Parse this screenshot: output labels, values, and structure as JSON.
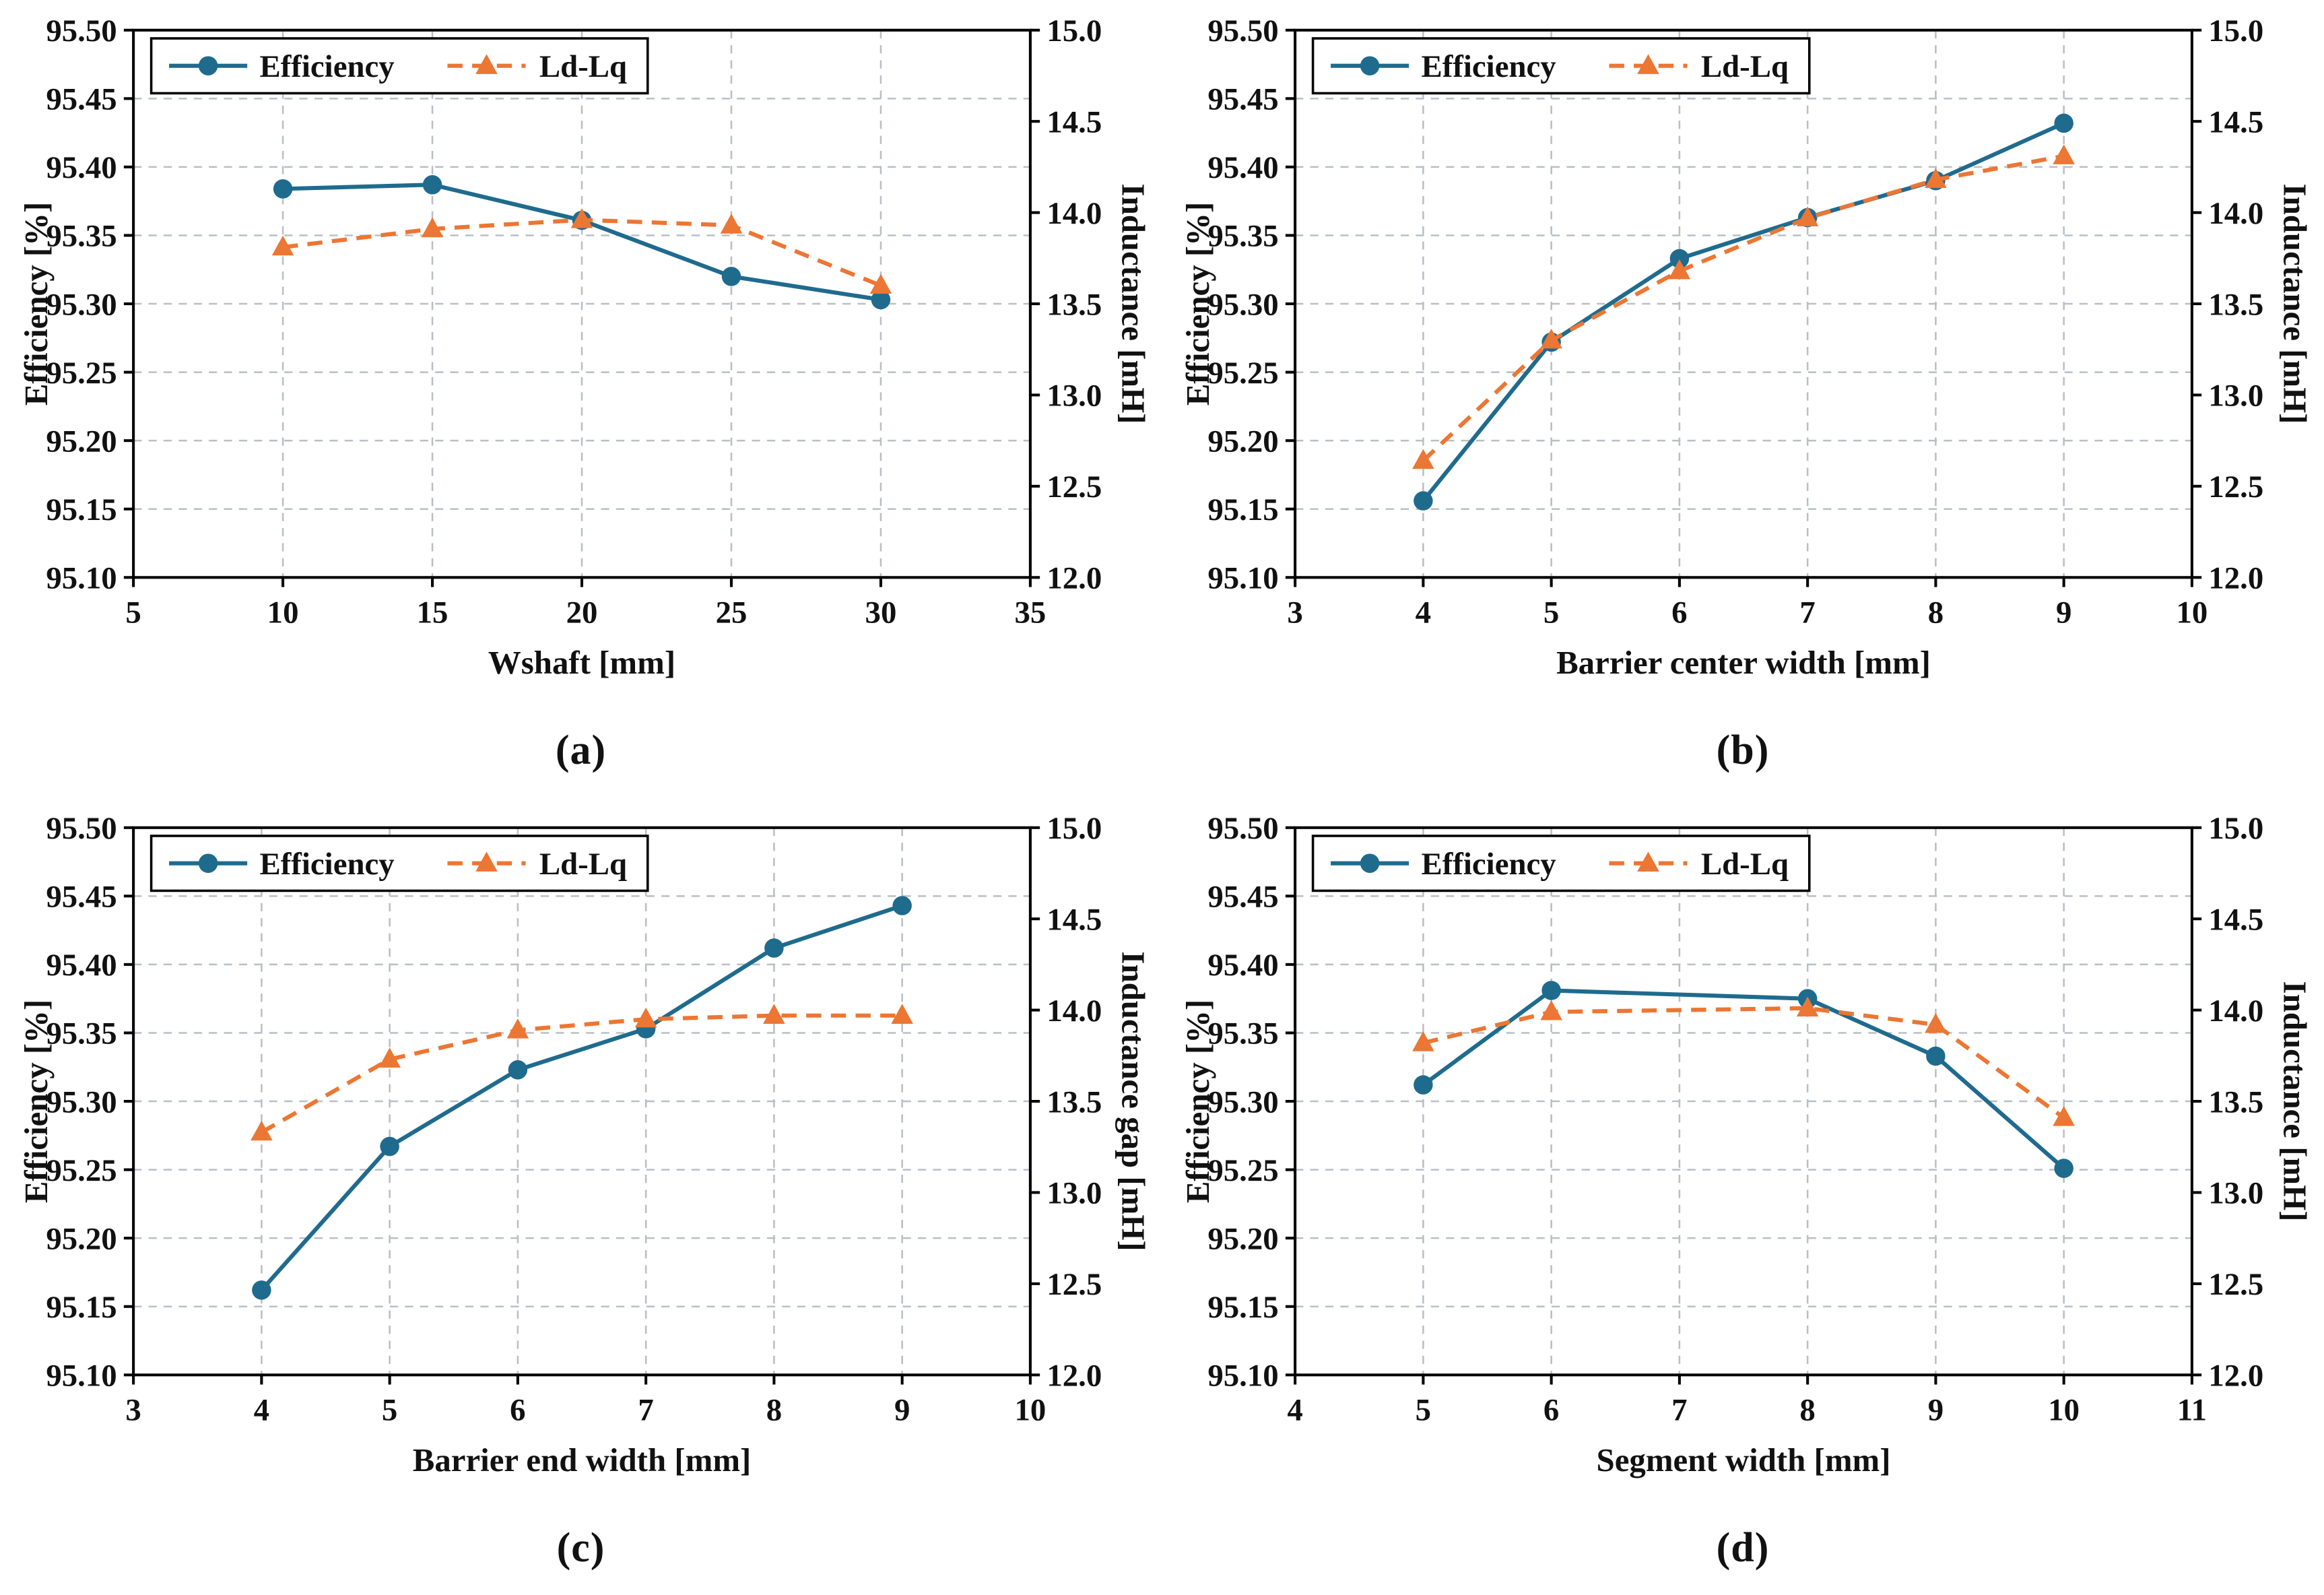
{
  "colors": {
    "efficiency": "#1f6b8e",
    "ldlq": "#ec7633",
    "grid": "#b9bfc6",
    "axis": "#000000"
  },
  "chart_data": [
    {
      "id": "a",
      "type": "line",
      "caption": "(a)",
      "xlabel": "Wshaft [mm]",
      "ylabel_left": "Efficiency [%]",
      "ylabel_right": "Inductance  [mH]",
      "xlim": [
        5,
        35
      ],
      "xticks": [
        "5",
        "10",
        "15",
        "20",
        "25",
        "30",
        "35"
      ],
      "ylim_left": [
        95.1,
        95.5
      ],
      "yticks_left": [
        "95.10",
        "95.15",
        "95.20",
        "95.25",
        "95.30",
        "95.35",
        "95.40",
        "95.45",
        "95.50"
      ],
      "ylim_right": [
        12.0,
        15.0
      ],
      "yticks_right": [
        "12.0",
        "12.5",
        "13.0",
        "13.5",
        "14.0",
        "14.5",
        "15.0"
      ],
      "legend": [
        {
          "label": "Efficiency"
        },
        {
          "label": "Ld-Lq"
        }
      ],
      "series": [
        {
          "name": "Efficiency",
          "axis": "left",
          "color": "#1f6b8e",
          "marker": "circle",
          "line": "solid",
          "x": [
            10,
            15,
            20,
            25,
            30
          ],
          "y": [
            95.384,
            95.387,
            95.361,
            95.32,
            95.303
          ]
        },
        {
          "name": "Ld-Lq",
          "axis": "right",
          "color": "#ec7633",
          "marker": "triangle",
          "line": "dashed",
          "x": [
            10,
            15,
            20,
            25,
            30
          ],
          "y": [
            13.81,
            13.91,
            13.96,
            13.93,
            13.6
          ]
        }
      ]
    },
    {
      "id": "b",
      "type": "line",
      "caption": "(b)",
      "xlabel": "Barrier center width [mm]",
      "ylabel_left": "Efficiency [%]",
      "ylabel_right": "Inductance  [mH]",
      "xlim": [
        3,
        10
      ],
      "xticks": [
        "3",
        "4",
        "5",
        "6",
        "7",
        "8",
        "9",
        "10"
      ],
      "ylim_left": [
        95.1,
        95.5
      ],
      "yticks_left": [
        "95.10",
        "95.15",
        "95.20",
        "95.25",
        "95.30",
        "95.35",
        "95.40",
        "95.45",
        "95.50"
      ],
      "ylim_right": [
        12.0,
        15.0
      ],
      "yticks_right": [
        "12.0",
        "12.5",
        "13.0",
        "13.5",
        "14.0",
        "14.5",
        "15.0"
      ],
      "legend": [
        {
          "label": "Efficiency"
        },
        {
          "label": "Ld-Lq"
        }
      ],
      "series": [
        {
          "name": "Efficiency",
          "axis": "left",
          "color": "#1f6b8e",
          "marker": "circle",
          "line": "solid",
          "x": [
            4,
            5,
            6,
            7,
            8,
            9
          ],
          "y": [
            95.156,
            95.272,
            95.333,
            95.363,
            95.39,
            95.432
          ]
        },
        {
          "name": "Ld-Lq",
          "axis": "right",
          "color": "#ec7633",
          "marker": "triangle",
          "line": "dashed",
          "x": [
            4,
            5,
            6,
            7,
            8,
            9
          ],
          "y": [
            12.64,
            13.3,
            13.68,
            13.97,
            14.18,
            14.31
          ]
        }
      ]
    },
    {
      "id": "c",
      "type": "line",
      "caption": "(c)",
      "xlabel": "Barrier end width [mm]",
      "ylabel_left": "Efficiency [%]",
      "ylabel_right": "Inductance gap [mH]",
      "xlim": [
        3,
        10
      ],
      "xticks": [
        "3",
        "4",
        "5",
        "6",
        "7",
        "8",
        "9",
        "10"
      ],
      "ylim_left": [
        95.1,
        95.5
      ],
      "yticks_left": [
        "95.10",
        "95.15",
        "95.20",
        "95.25",
        "95.30",
        "95.35",
        "95.40",
        "95.45",
        "95.50"
      ],
      "ylim_right": [
        12.0,
        15.0
      ],
      "yticks_right": [
        "12.0",
        "12.5",
        "13.0",
        "13.5",
        "14.0",
        "14.5",
        "15.0"
      ],
      "legend": [
        {
          "label": "Efficiency"
        },
        {
          "label": "Ld-Lq"
        }
      ],
      "series": [
        {
          "name": "Efficiency",
          "axis": "left",
          "color": "#1f6b8e",
          "marker": "circle",
          "line": "solid",
          "x": [
            4,
            5,
            6,
            7,
            8,
            9
          ],
          "y": [
            95.162,
            95.267,
            95.323,
            95.353,
            95.412,
            95.443
          ]
        },
        {
          "name": "Ld-Lq",
          "axis": "right",
          "color": "#ec7633",
          "marker": "triangle",
          "line": "dashed",
          "x": [
            4,
            5,
            6,
            7,
            8,
            9
          ],
          "y": [
            13.33,
            13.73,
            13.89,
            13.95,
            13.97,
            13.97
          ]
        }
      ]
    },
    {
      "id": "d",
      "type": "line",
      "caption": "(d)",
      "xlabel": "Segment width [mm]",
      "ylabel_left": "Efficiency [%]",
      "ylabel_right": "Inductance  [mH]",
      "xlim": [
        4,
        11
      ],
      "xticks": [
        "4",
        "5",
        "6",
        "7",
        "8",
        "9",
        "10",
        "11"
      ],
      "ylim_left": [
        95.1,
        95.5
      ],
      "yticks_left": [
        "95.10",
        "95.15",
        "95.20",
        "95.25",
        "95.30",
        "95.35",
        "95.40",
        "95.45",
        "95.50"
      ],
      "ylim_right": [
        12.0,
        15.0
      ],
      "yticks_right": [
        "12.0",
        "12.5",
        "13.0",
        "13.5",
        "14.0",
        "14.5",
        "15.0"
      ],
      "legend": [
        {
          "label": "Efficiency"
        },
        {
          "label": "Ld-Lq"
        }
      ],
      "series": [
        {
          "name": "Efficiency",
          "axis": "left",
          "color": "#1f6b8e",
          "marker": "circle",
          "line": "solid",
          "x": [
            5,
            6,
            8,
            9,
            10
          ],
          "y": [
            95.312,
            95.381,
            95.375,
            95.333,
            95.251
          ]
        },
        {
          "name": "Ld-Lq",
          "axis": "right",
          "color": "#ec7633",
          "marker": "triangle",
          "line": "dashed",
          "x": [
            5,
            6,
            8,
            9,
            10
          ],
          "y": [
            13.82,
            13.99,
            14.01,
            13.92,
            13.41
          ]
        }
      ]
    }
  ]
}
